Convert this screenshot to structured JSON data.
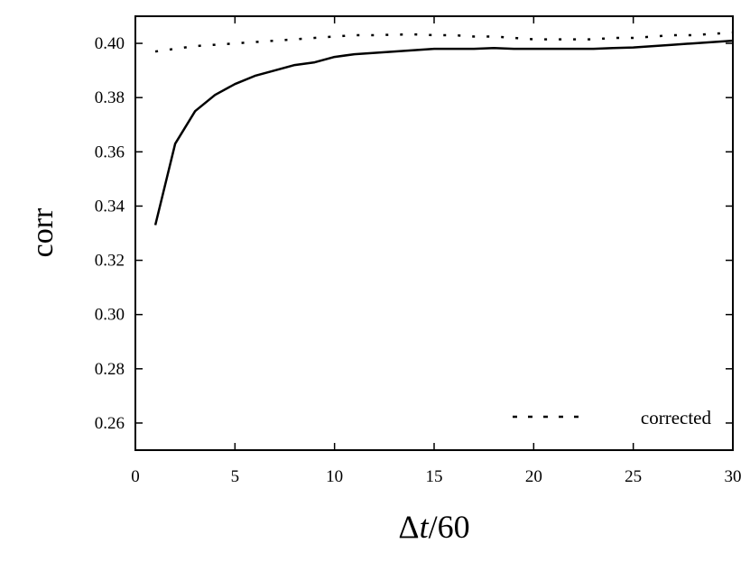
{
  "chart_data": {
    "type": "line",
    "title": "",
    "xlabel_symbol": "Δ",
    "xlabel_var": "t",
    "xlabel_rest": "/60",
    "ylabel": "corr",
    "xlim": [
      0,
      30
    ],
    "ylim": [
      0.25,
      0.41
    ],
    "x_ticks": [
      0,
      5,
      10,
      15,
      20,
      25,
      30
    ],
    "x_tick_labels": [
      "0",
      "5",
      "10",
      "15",
      "20",
      "25",
      "30"
    ],
    "y_ticks": [
      0.26,
      0.28,
      0.3,
      0.32,
      0.34,
      0.36,
      0.38,
      0.4
    ],
    "y_tick_labels": [
      "0.26",
      "0.28",
      "0.30",
      "0.32",
      "0.34",
      "0.36",
      "0.38",
      "0.40"
    ],
    "grid": false,
    "legend_position": "bottom-right",
    "series": [
      {
        "style": "solid",
        "color": "#000000",
        "x": [
          1,
          2,
          3,
          4,
          5,
          6,
          7,
          8,
          9,
          10,
          11,
          12,
          13,
          14,
          15,
          16,
          17,
          18,
          19,
          20,
          21,
          22,
          23,
          24,
          25,
          26,
          27,
          28,
          29,
          30
        ],
        "y": [
          0.333,
          0.363,
          0.375,
          0.381,
          0.385,
          0.388,
          0.39,
          0.392,
          0.393,
          0.395,
          0.396,
          0.3965,
          0.397,
          0.3975,
          0.398,
          0.398,
          0.398,
          0.3983,
          0.398,
          0.398,
          0.398,
          0.398,
          0.398,
          0.3983,
          0.3985,
          0.399,
          0.3995,
          0.4,
          0.4005,
          0.401
        ]
      },
      {
        "name": "corrected",
        "style": "dotted",
        "color": "#000000",
        "x": [
          1,
          2,
          3,
          4,
          5,
          6,
          7,
          8,
          9,
          10,
          11,
          12,
          13,
          14,
          15,
          16,
          17,
          18,
          19,
          20,
          21,
          22,
          23,
          24,
          25,
          26,
          27,
          28,
          29,
          30
        ],
        "y": [
          0.397,
          0.398,
          0.399,
          0.3995,
          0.4,
          0.4005,
          0.401,
          0.4015,
          0.402,
          0.4025,
          0.403,
          0.403,
          0.4032,
          0.4033,
          0.403,
          0.403,
          0.4025,
          0.4025,
          0.402,
          0.4015,
          0.4015,
          0.4015,
          0.4015,
          0.402,
          0.402,
          0.4025,
          0.403,
          0.403,
          0.4035,
          0.404
        ]
      }
    ]
  }
}
